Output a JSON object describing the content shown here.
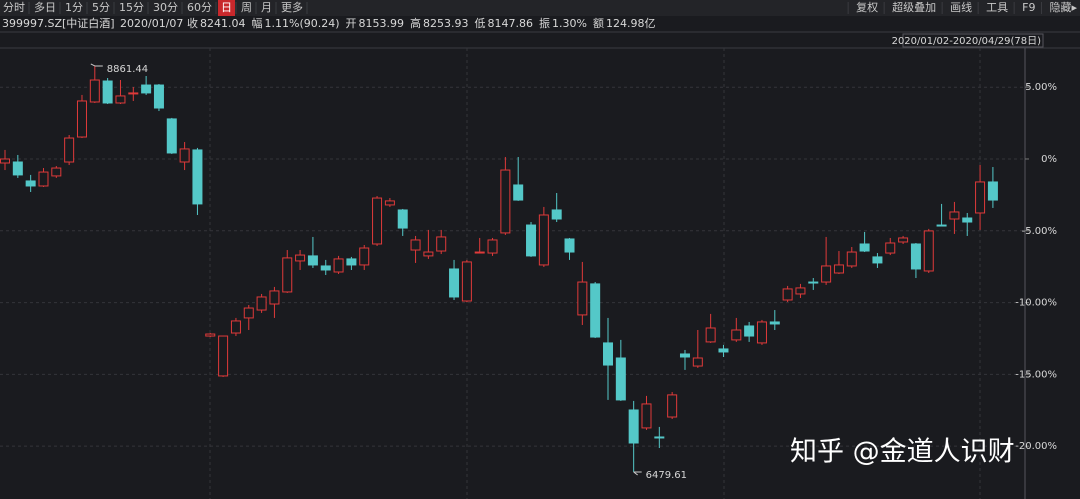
{
  "toolbar": {
    "periods": [
      "分时",
      "多日",
      "1分",
      "5分",
      "15分",
      "30分",
      "60分",
      "日",
      "周",
      "月",
      "更多"
    ],
    "active_period_index": 7,
    "tools": [
      "复权",
      "超级叠加",
      "画线",
      "工具",
      "F9",
      "隐藏▸"
    ]
  },
  "quote": {
    "symbol": "399997.SZ[中证白酒]",
    "date": "2020/01/07",
    "items": [
      {
        "label": "收",
        "value": "8241.04",
        "color": "#e03a3a"
      },
      {
        "label": "幅",
        "value": "1.11%(90.24)",
        "color": "#e03a3a"
      },
      {
        "label": "开",
        "value": "8153.99",
        "color": "#e03a3a"
      },
      {
        "label": "高",
        "value": "8253.93",
        "color": "#e03a3a"
      },
      {
        "label": "低",
        "value": "8147.86",
        "color": "#3cc060"
      },
      {
        "label": "振",
        "value": "1.30%",
        "color": "#d8d8d8"
      },
      {
        "label": "额",
        "value": "124.98亿",
        "color": "#d8d8d8"
      }
    ]
  },
  "watermark": "知乎 @金道人识财",
  "chart_data": {
    "type": "candlestick",
    "date_range": "2020/01/02-2020/04/29(78日)",
    "up_color": "#e03a3a",
    "down_color": "#54c8c8",
    "grid": true,
    "max_label": "8861.44",
    "min_label": "6479.61",
    "ylim": [
      -23.68,
      7.59
    ],
    "yticks": [
      {
        "value": 5,
        "label": "5.00%"
      },
      {
        "value": 0,
        "label": "0%"
      },
      {
        "value": -5,
        "label": "-5.00%"
      },
      {
        "value": -10,
        "label": "-10.00%"
      },
      {
        "value": -15,
        "label": "-15.00%"
      },
      {
        "value": -20,
        "label": "-20.00%"
      }
    ],
    "open": [
      -0.28,
      -0.21,
      -1.53,
      -1.88,
      -1.18,
      -0.21,
      1.53,
      3.97,
      5.43,
      3.9,
      4.53,
      5.15,
      5.15,
      2.79,
      -0.21,
      0.63,
      -12.33,
      -15.11,
      -12.12,
      -11.07,
      -10.52,
      -10.1,
      -9.26,
      -7.1,
      -6.75,
      -7.45,
      -7.87,
      -6.96,
      -7.38,
      -5.92,
      -3.2,
      -3.55,
      -6.34,
      -6.75,
      -6.41,
      -7.66,
      -9.89,
      -6.55,
      -6.55,
      -5.15,
      -1.81,
      -4.6,
      -7.38,
      -3.55,
      -5.57,
      -10.86,
      -8.7,
      -12.81,
      -13.86,
      -17.48,
      -18.73,
      -19.36,
      -17.97,
      -13.58,
      -14.42,
      -12.74,
      -13.23,
      -12.6,
      -11.63,
      -12.81,
      -11.35,
      -9.82,
      -9.4,
      -8.57,
      -8.57,
      -7.94,
      -7.45,
      -5.92,
      -6.82,
      -6.55,
      -5.78,
      -5.92,
      -7.8,
      -4.6,
      -4.18,
      -4.11,
      -3.76,
      -1.6
    ],
    "high": [
      0.63,
      0.28,
      -1.11,
      -0.63,
      -0.49,
      1.67,
      4.46,
      6.48,
      5.64,
      5.5,
      5.01,
      5.78,
      5.22,
      2.86,
      1.18,
      0.77,
      -12.12,
      -12.33,
      -11.07,
      -10.17,
      -9.4,
      -8.91,
      -6.34,
      -6.34,
      -5.43,
      -7.03,
      -6.75,
      -6.82,
      -5.99,
      -2.58,
      -2.72,
      -3.48,
      -5.36,
      -4.94,
      -4.94,
      -7.03,
      -7.03,
      -5.5,
      -5.5,
      0.14,
      0.14,
      -4.39,
      -3.34,
      -2.37,
      -5.5,
      -7.17,
      -8.57,
      -11.07,
      -12.6,
      -16.85,
      -16.5,
      -18.66,
      -16.23,
      -13.3,
      -11.91,
      -10.79,
      -12.95,
      -11.07,
      -11.35,
      -11.21,
      -10.52,
      -8.84,
      -8.7,
      -8.29,
      -5.43,
      -6.41,
      -6.13,
      -5.08,
      -6.55,
      -5.5,
      -5.36,
      -5.85,
      -4.87,
      -3.13,
      -2.99,
      -3.76,
      -0.42,
      -0.56
    ],
    "low": [
      -0.77,
      -1.32,
      -2.3,
      -1.95,
      -1.32,
      -0.42,
      1.46,
      3.9,
      3.83,
      3.83,
      4.04,
      4.46,
      3.34,
      0.35,
      -0.77,
      -3.9,
      -12.4,
      -15.18,
      -12.33,
      -11.91,
      -10.72,
      -11.07,
      -9.33,
      -7.73,
      -7.59,
      -8.08,
      -8.01,
      -7.73,
      -7.73,
      -6.06,
      -3.34,
      -5.36,
      -7.24,
      -6.96,
      -6.62,
      -9.82,
      -9.96,
      -6.55,
      -6.75,
      -5.29,
      -2.92,
      -6.82,
      -7.52,
      -4.39,
      -7.03,
      -11.56,
      -12.47,
      -16.78,
      -16.85,
      -21.8,
      -18.87,
      -20.13,
      -18.11,
      -14.69,
      -14.55,
      -12.81,
      -13.79,
      -12.74,
      -12.74,
      -12.95,
      -11.91,
      -9.96,
      -9.68,
      -9.12,
      -8.77,
      -8.01,
      -7.59,
      -6.48,
      -7.59,
      -6.69,
      -5.92,
      -8.29,
      -7.94,
      -4.67,
      -5.22,
      -5.36,
      -4.94,
      -3.41
    ],
    "close": [
      0,
      -1.11,
      -1.88,
      -0.91,
      -0.63,
      1.46,
      4.04,
      5.5,
      3.9,
      4.39,
      4.6,
      4.6,
      3.55,
      0.42,
      0.7,
      -3.13,
      -12.19,
      -12.33,
      -11.28,
      -10.38,
      -9.61,
      -9.19,
      -6.89,
      -6.69,
      -7.38,
      -7.73,
      -6.96,
      -7.38,
      -6.2,
      -2.72,
      -2.92,
      -4.81,
      -5.64,
      -6.48,
      -5.43,
      -9.61,
      -7.17,
      -6.48,
      -5.64,
      -0.77,
      -2.86,
      -6.75,
      -3.9,
      -4.18,
      -6.48,
      -8.57,
      -12.4,
      -14.35,
      -16.78,
      -19.78,
      -17.06,
      -19.43,
      -16.43,
      -13.79,
      -13.86,
      -11.77,
      -13.44,
      -11.91,
      -12.33,
      -11.35,
      -11.49,
      -9.05,
      -8.98,
      -8.64,
      -7.45,
      -7.38,
      -6.48,
      -6.41,
      -7.24,
      -5.85,
      -5.5,
      -7.66,
      -5.01,
      -4.67,
      -3.69,
      -4.39,
      -1.6,
      -2.86
    ]
  }
}
